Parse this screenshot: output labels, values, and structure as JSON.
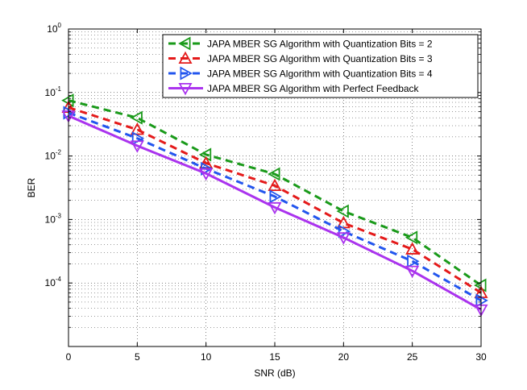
{
  "chart_data": {
    "type": "line",
    "title": "",
    "xlabel": "SNR (dB)",
    "ylabel": "BER",
    "x": [
      0,
      5,
      10,
      15,
      20,
      25,
      30
    ],
    "xlim": [
      0,
      30
    ],
    "ylim": [
      1e-05,
      1
    ],
    "yscale": "log",
    "grid": true,
    "legend_position": "top-right",
    "xticks": [
      "0",
      "5",
      "10",
      "15",
      "20",
      "25",
      "30"
    ],
    "yticks": [
      {
        "base": "10",
        "exp": "0"
      },
      {
        "base": "10",
        "exp": "-1"
      },
      {
        "base": "10",
        "exp": "-2"
      },
      {
        "base": "10",
        "exp": "-3"
      },
      {
        "base": "10",
        "exp": "-4"
      }
    ],
    "series": [
      {
        "name": "JAPA MBER SG Algorithm with Quantization Bits = 2",
        "color": "#1a9a1a",
        "line_style": "dashed",
        "marker": "triangle-left",
        "values": [
          0.075,
          0.04,
          0.0105,
          0.0052,
          0.00135,
          0.00052,
          9.2e-05
        ]
      },
      {
        "name": "JAPA MBER SG Algorithm with Quantization Bits = 3",
        "color": "#e41a1a",
        "line_style": "dashed",
        "marker": "triangle-up",
        "values": [
          0.058,
          0.026,
          0.0077,
          0.0034,
          0.00088,
          0.00034,
          7e-05
        ]
      },
      {
        "name": "JAPA MBER SG Algorithm with Quantization Bits = 4",
        "color": "#2255ee",
        "line_style": "dashed",
        "marker": "triangle-right",
        "values": [
          0.048,
          0.019,
          0.0063,
          0.0023,
          0.00065,
          0.00022,
          5.3e-05
        ]
      },
      {
        "name": "JAPA MBER SG Algorithm with Perfect Feedback",
        "color": "#aa33ee",
        "line_style": "solid",
        "marker": "triangle-down",
        "values": [
          0.043,
          0.0145,
          0.0053,
          0.00155,
          0.00052,
          0.000155,
          3.8e-05
        ]
      }
    ]
  }
}
